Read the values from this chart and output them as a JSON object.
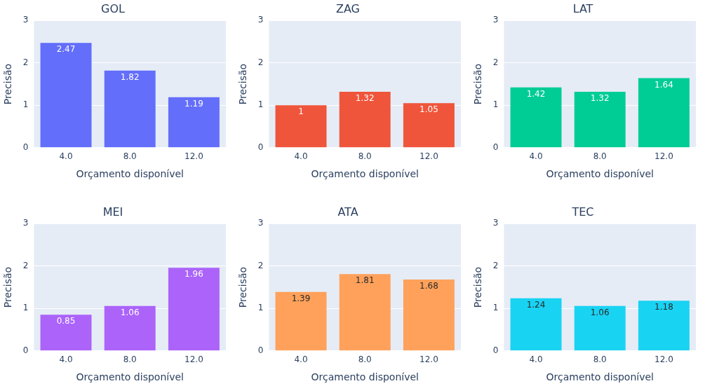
{
  "chart_data": [
    {
      "type": "bar",
      "title": "GOL",
      "xlabel": "Orçamento disponível",
      "ylabel": "Precisão",
      "categories": [
        "4.0",
        "8.0",
        "12.0"
      ],
      "values": [
        2.47,
        1.82,
        1.19
      ],
      "color": "#636efa",
      "ylim": [
        0,
        3
      ],
      "yticks": [
        0,
        1,
        2,
        3
      ],
      "grid": "y",
      "data_labels": true
    },
    {
      "type": "bar",
      "title": "ZAG",
      "xlabel": "Orçamento disponível",
      "ylabel": "Precisão",
      "categories": [
        "4.0",
        "8.0",
        "12.0"
      ],
      "values": [
        1,
        1.32,
        1.05
      ],
      "color": "#ef553b",
      "ylim": [
        0,
        3
      ],
      "yticks": [
        0,
        1,
        2,
        3
      ],
      "grid": "y",
      "data_labels": true
    },
    {
      "type": "bar",
      "title": "LAT",
      "xlabel": "Orçamento disponível",
      "ylabel": "Precisão",
      "categories": [
        "4.0",
        "8.0",
        "12.0"
      ],
      "values": [
        1.42,
        1.32,
        1.64
      ],
      "color": "#00cc96",
      "ylim": [
        0,
        3
      ],
      "yticks": [
        0,
        1,
        2,
        3
      ],
      "grid": "y",
      "data_labels": true
    },
    {
      "type": "bar",
      "title": "MEI",
      "xlabel": "Orçamento disponível",
      "ylabel": "Precisão",
      "categories": [
        "4.0",
        "8.0",
        "12.0"
      ],
      "values": [
        0.85,
        1.06,
        1.96
      ],
      "color": "#ab63fa",
      "ylim": [
        0,
        3
      ],
      "yticks": [
        0,
        1,
        2,
        3
      ],
      "grid": "y",
      "data_labels": true
    },
    {
      "type": "bar",
      "title": "ATA",
      "xlabel": "Orçamento disponível",
      "ylabel": "Precisão",
      "categories": [
        "4.0",
        "8.0",
        "12.0"
      ],
      "values": [
        1.39,
        1.81,
        1.68
      ],
      "color": "#ffa15a",
      "ylim": [
        0,
        3
      ],
      "yticks": [
        0,
        1,
        2,
        3
      ],
      "grid": "y",
      "data_labels": true
    },
    {
      "type": "bar",
      "title": "TEC",
      "xlabel": "Orçamento disponível",
      "ylabel": "Precisão",
      "categories": [
        "4.0",
        "8.0",
        "12.0"
      ],
      "values": [
        1.24,
        1.06,
        1.18
      ],
      "color": "#19d3f3",
      "ylim": [
        0,
        3
      ],
      "yticks": [
        0,
        1,
        2,
        3
      ],
      "grid": "y",
      "data_labels": true
    }
  ]
}
